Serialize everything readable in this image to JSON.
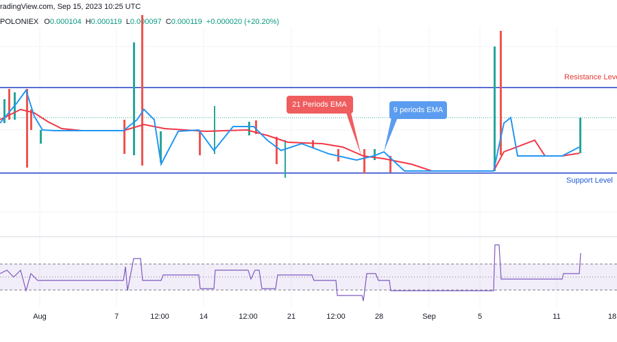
{
  "header": {
    "source": "radingView.com, Sep 15, 2023 10:25 UTC",
    "exchange": "POLONIEX",
    "ohlc": [
      {
        "label": "O",
        "value": "0.000104"
      },
      {
        "label": "H",
        "value": "0.000119"
      },
      {
        "label": "L",
        "value": "0.000097"
      },
      {
        "label": "C",
        "value": "0.000119"
      }
    ],
    "change": "+0.000020 (+20.20%)"
  },
  "annotations": {
    "resistance": "Resistance Level",
    "support": "Support Level",
    "ema21": "21 Periods EMA",
    "ema9": "9 periods EMA"
  },
  "x_axis": [
    "Aug",
    "7",
    "12:00",
    "14",
    "12:00",
    "21",
    "12:00",
    "28",
    "Sep",
    "5",
    "11",
    "18"
  ]
}
